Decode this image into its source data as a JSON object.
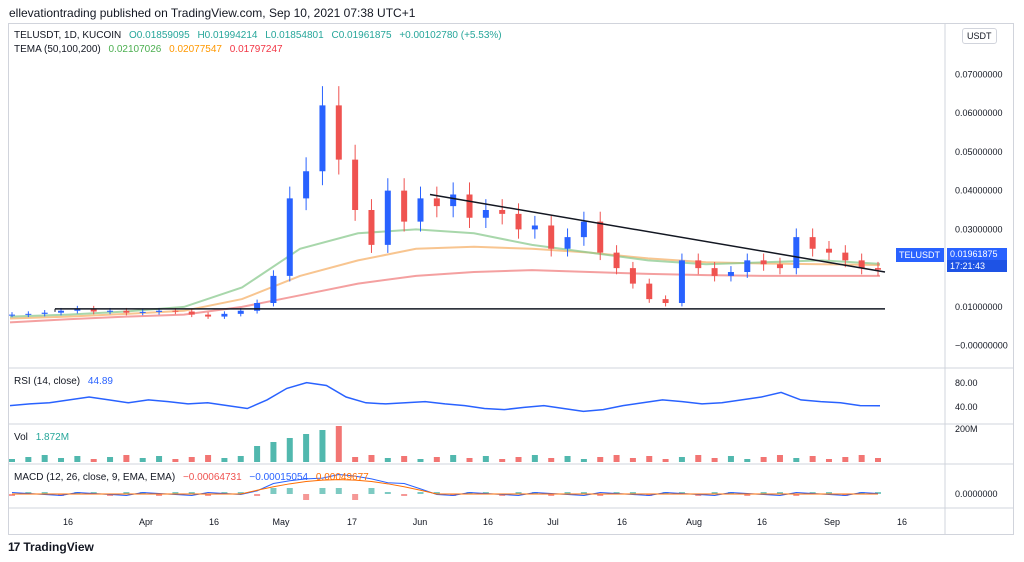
{
  "publisher_line": "ellevationtrading published on TradingView.com, Sep 10, 2021 07:38 UTC+1",
  "footer_brand": "TradingView",
  "currency_button": "USDT",
  "symbol_tag": "TELUSDT",
  "price_tag": "0.01961875",
  "countdown": "17:21:43",
  "legend_main": {
    "symbol": "TELUSDT, 1D, KUCOIN",
    "open": "O0.01859095",
    "high": "H0.01994214",
    "low": "L0.01854801",
    "close": "C0.01961875",
    "change": "+0.00102780 (+5.53%)"
  },
  "legend_tema": {
    "label": "TEMA (50,100,200)",
    "v1": "0.02107026",
    "v2": "0.02077547",
    "v3": "0.01797247"
  },
  "legend_rsi": {
    "label": "RSI (14, close)",
    "value": "44.89"
  },
  "legend_vol": {
    "label": "Vol",
    "value": "1.872M"
  },
  "legend_macd": {
    "label": "MACD (12, 26, close, 9, EMA, EMA)",
    "v1": "−0.00064731",
    "v2": "−0.00015054",
    "v3": "0.00049677"
  },
  "colors": {
    "up": "#26a69a",
    "down": "#ef5350",
    "candle_up": "#2962ff",
    "tema1": "#8bc98f",
    "tema2": "#f5b26b",
    "tema3": "#f08080",
    "rsi": "#2962ff",
    "macd": "#2962ff",
    "signal": "#ff6d00"
  },
  "chart_data": {
    "type": "candlestick",
    "y_ticks": [
      "0.07000000",
      "0.06000000",
      "0.05000000",
      "0.04000000",
      "0.03000000",
      "0.02000000",
      "0.01000000",
      "−0.00000000"
    ],
    "ylim": [
      -0.005,
      0.075
    ],
    "x_ticks": [
      "16",
      "Apr",
      "16",
      "May",
      "17",
      "Jun",
      "16",
      "Jul",
      "16",
      "Aug",
      "16",
      "Sep",
      "16"
    ],
    "rsi_ticks": [
      "80.00",
      "40.00"
    ],
    "vol_ticks": [
      "200M"
    ],
    "macd_ticks": [
      "0.0000000"
    ],
    "price_path": [
      0.008,
      0.0082,
      0.0085,
      0.009,
      0.0095,
      0.0088,
      0.009,
      0.0085,
      0.0087,
      0.009,
      0.0088,
      0.008,
      0.0075,
      0.0082,
      0.009,
      0.011,
      0.018,
      0.038,
      0.045,
      0.062,
      0.048,
      0.035,
      0.026,
      0.04,
      0.032,
      0.038,
      0.036,
      0.039,
      0.033,
      0.035,
      0.034,
      0.03,
      0.031,
      0.025,
      0.028,
      0.032,
      0.024,
      0.02,
      0.016,
      0.012,
      0.011,
      0.022,
      0.02,
      0.018,
      0.019,
      0.022,
      0.021,
      0.02,
      0.028,
      0.025,
      0.024,
      0.022,
      0.02,
      0.0196
    ],
    "tema_50": [
      0.0075,
      0.008,
      0.0088,
      0.01,
      0.015,
      0.025,
      0.029,
      0.03,
      0.029,
      0.026,
      0.024,
      0.022,
      0.021,
      0.0215,
      0.022,
      0.0211
    ],
    "tema_100": [
      0.007,
      0.0075,
      0.0082,
      0.009,
      0.012,
      0.018,
      0.022,
      0.025,
      0.0255,
      0.025,
      0.024,
      0.0225,
      0.0215,
      0.0212,
      0.021,
      0.0208
    ],
    "tema_200": [
      0.006,
      0.0068,
      0.0075,
      0.008,
      0.01,
      0.013,
      0.016,
      0.018,
      0.019,
      0.0195,
      0.019,
      0.0185,
      0.0182,
      0.018,
      0.018,
      0.018
    ],
    "trendline_support": 0.0095,
    "trendline_resistance": [
      0.039,
      0.019
    ],
    "rsi": [
      45,
      48,
      50,
      55,
      60,
      55,
      50,
      55,
      52,
      48,
      50,
      45,
      40,
      55,
      75,
      85,
      80,
      60,
      50,
      48,
      50,
      52,
      48,
      45,
      40,
      38,
      42,
      45,
      40,
      35,
      38,
      45,
      50,
      55,
      52,
      48,
      50,
      55,
      60,
      68,
      55,
      52,
      50,
      45,
      44.89
    ]
  }
}
